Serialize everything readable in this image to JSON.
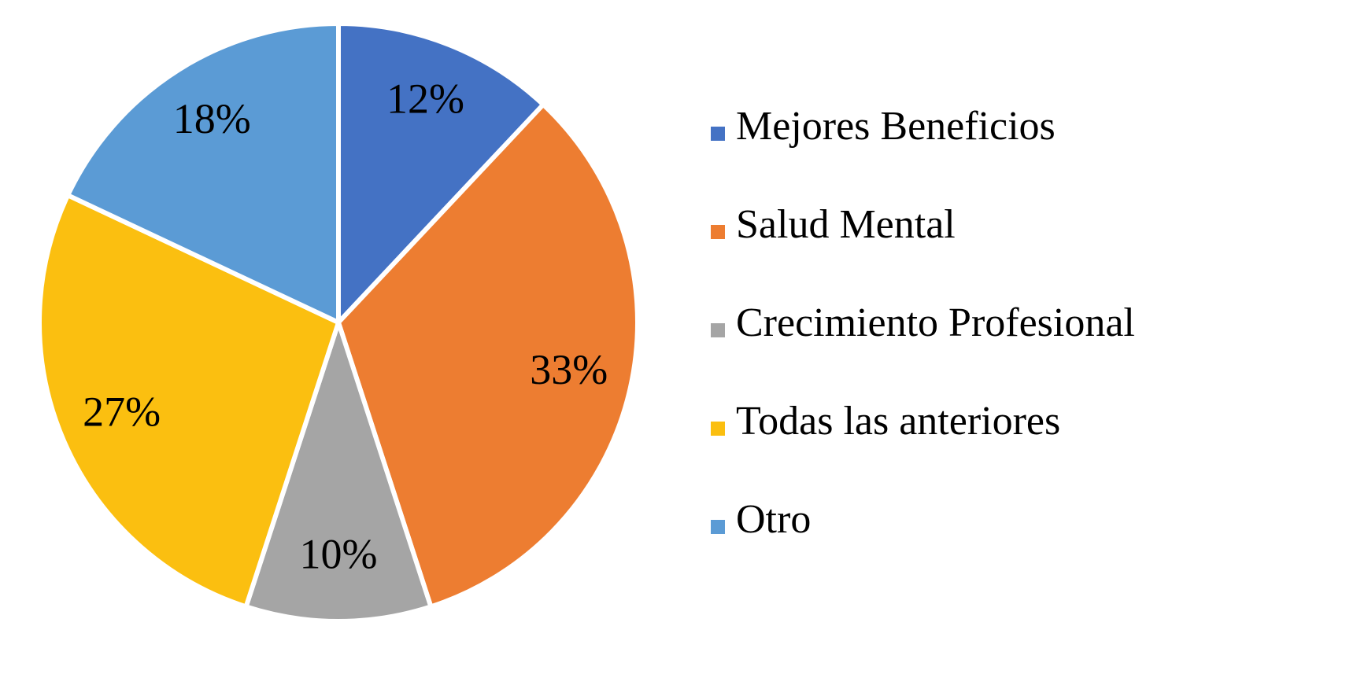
{
  "chart_data": {
    "type": "pie",
    "categories": [
      "Mejores Beneficios",
      "Salud Mental",
      "Crecimiento Profesional",
      "Todas las anteriores",
      "Otro"
    ],
    "values": [
      12,
      33,
      10,
      27,
      18
    ],
    "value_labels": [
      "12%",
      "33%",
      "10%",
      "27%",
      "18%"
    ],
    "colors": [
      "#4472c4",
      "#ed7d31",
      "#a5a5a5",
      "#fbbf10",
      "#5b9bd5"
    ],
    "legend": "right"
  }
}
